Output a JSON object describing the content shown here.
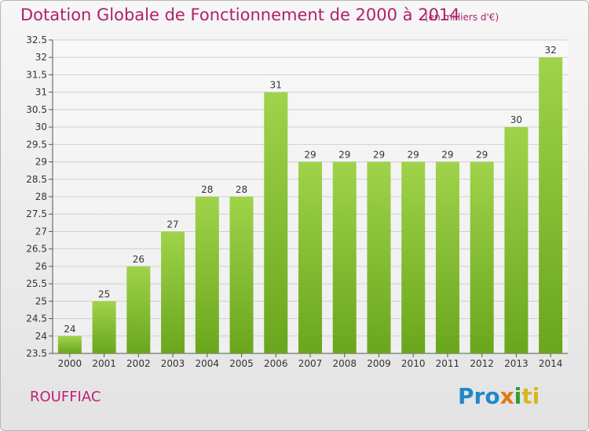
{
  "header": {
    "title": "Dotation Globale de Fonctionnement de 2000 à 2014",
    "unit": "(en milliers d'€)"
  },
  "footer": {
    "commune": "ROUFFIAC",
    "logo": {
      "text": "Proxiti",
      "parts": [
        "Pro",
        "x",
        "i",
        "ti"
      ]
    }
  },
  "colors": {
    "title": "#b0206a",
    "bar_light": "#9fd34a",
    "bar_dark": "#6aa61d",
    "grid": "#d0d0d0"
  },
  "chart_data": {
    "type": "bar",
    "categories": [
      "2000",
      "2001",
      "2002",
      "2003",
      "2004",
      "2005",
      "2006",
      "2007",
      "2008",
      "2009",
      "2010",
      "2011",
      "2012",
      "2013",
      "2014"
    ],
    "values": [
      24,
      25,
      26,
      27,
      28,
      28,
      31,
      29,
      29,
      29,
      29,
      29,
      29,
      30,
      32
    ],
    "labels": [
      "24",
      "25",
      "26",
      "27",
      "28",
      "28",
      "31",
      "29",
      "29",
      "29",
      "29",
      "29",
      "29",
      "30",
      "32"
    ],
    "ylim": [
      23.5,
      32.5
    ],
    "yticks": [
      "23.5",
      "24",
      "24.5",
      "25",
      "25.5",
      "26",
      "26.5",
      "27",
      "27.5",
      "28",
      "28.5",
      "29",
      "29.5",
      "30",
      "30.5",
      "31",
      "31.5",
      "32",
      "32.5"
    ],
    "grid": true
  }
}
